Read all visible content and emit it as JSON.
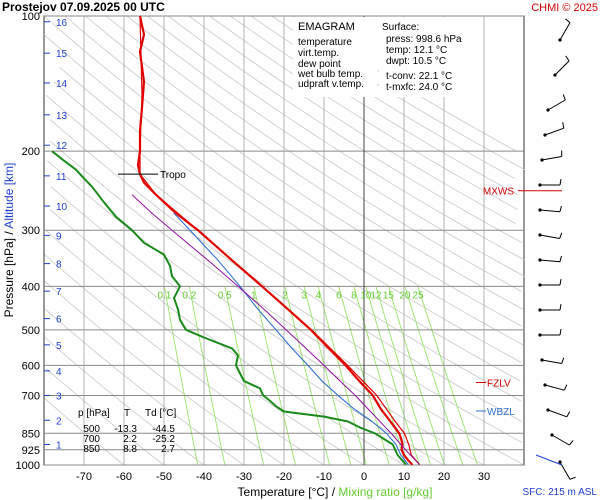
{
  "header": {
    "title": "Prostejov   07.09.2025 00 UTC",
    "copyright": "CHMI © 2025"
  },
  "legend": {
    "heading": "EMAGRAM",
    "items": [
      {
        "label": "temperature",
        "color": "#e00000"
      },
      {
        "label": "virt.temp.",
        "color": "#e00000"
      },
      {
        "label": "dew point",
        "color": "#1a8a1a"
      },
      {
        "label": "wet bulb temp.",
        "color": "#3070d0"
      },
      {
        "label": "udpraft v.temp.",
        "color": "#9010a0"
      }
    ]
  },
  "surface_box": {
    "heading": "Surface:",
    "lines": [
      {
        "text": "press: 998.6 hPa",
        "color": "#000000"
      },
      {
        "text": "temp: 12.1 °C",
        "color": "#e00000"
      },
      {
        "text": "dwpt: 10.5 °C",
        "color": "#1a8a1a"
      },
      {
        "text": "t-conv: 22.1 °C",
        "color": "#000000"
      },
      {
        "text": "t-mxfc: 24.0 °C",
        "color": "#000000"
      }
    ]
  },
  "table": {
    "headers": [
      "p [hPa]",
      "T",
      "Td [°C]"
    ],
    "rows": [
      [
        "500",
        "-13.3",
        "-44.5"
      ],
      [
        "700",
        "2.2",
        "-25.2"
      ],
      [
        "850",
        "8.8",
        "2.7"
      ]
    ]
  },
  "labels": {
    "tropo": "Tropo",
    "mxws": "MXWS",
    "fzlv": "FZLV",
    "wbzl": "WBZL",
    "sfc": "SFC: 215 m ASL"
  },
  "chart_data": {
    "type": "line",
    "title": "Prostejov   07.09.2025 00 UTC",
    "xlabel": "Temperature [°C]",
    "xlabel2": "Mixing ratio [g/kg]",
    "ylabel": "Pressure [hPa]",
    "ylabel2": "Altitude [km]",
    "xlim": [
      -80,
      40
    ],
    "ylim": [
      1000,
      100
    ],
    "y_scale": "log",
    "x_ticks": [
      -70,
      -60,
      -50,
      -40,
      -30,
      -20,
      -10,
      0,
      10,
      20,
      30
    ],
    "p_ticks": [
      100,
      200,
      300,
      400,
      500,
      600,
      700,
      850,
      925,
      1000
    ],
    "altitude_ticks": [
      {
        "km": 1,
        "p": 900
      },
      {
        "km": 2,
        "p": 795
      },
      {
        "km": 3,
        "p": 700
      },
      {
        "km": 4,
        "p": 617
      },
      {
        "km": 5,
        "p": 540
      },
      {
        "km": 6,
        "p": 472
      },
      {
        "km": 7,
        "p": 410
      },
      {
        "km": 8,
        "p": 356
      },
      {
        "km": 9,
        "p": 308
      },
      {
        "km": 10,
        "p": 265
      },
      {
        "km": 11,
        "p": 227
      },
      {
        "km": 12,
        "p": 194
      },
      {
        "km": 13,
        "p": 166
      },
      {
        "km": 14,
        "p": 141
      },
      {
        "km": 15,
        "p": 121
      },
      {
        "km": 16,
        "p": 103
      }
    ],
    "mixing_ratio_labels": [
      "0.1",
      "0.2",
      "0.5",
      "1",
      "2",
      "3",
      "4",
      "6",
      "8",
      "10",
      "12",
      "15",
      "20",
      "25"
    ],
    "mixing_ratio_values": [
      0.1,
      0.2,
      0.5,
      1,
      2,
      3,
      4,
      6,
      8,
      10,
      12,
      15,
      20,
      25
    ],
    "mixing_ratio_label_p": 400,
    "series": [
      {
        "name": "temperature",
        "color": "#e00000",
        "points": [
          [
            998.6,
            12.1
          ],
          [
            975,
            11
          ],
          [
            950,
            10
          ],
          [
            925,
            9.4
          ],
          [
            900,
            9.6
          ],
          [
            875,
            9.3
          ],
          [
            850,
            8.8
          ],
          [
            820,
            7.5
          ],
          [
            800,
            6.6
          ],
          [
            750,
            4.2
          ],
          [
            700,
            2.2
          ],
          [
            650,
            -1.2
          ],
          [
            600,
            -4.6
          ],
          [
            550,
            -8.8
          ],
          [
            500,
            -13.3
          ],
          [
            450,
            -19
          ],
          [
            400,
            -25.5
          ],
          [
            350,
            -33
          ],
          [
            300,
            -41.5
          ],
          [
            275,
            -47
          ],
          [
            250,
            -52
          ],
          [
            235,
            -55
          ],
          [
            225,
            -56
          ],
          [
            215,
            -56.5
          ],
          [
            200,
            -56
          ],
          [
            180,
            -56
          ],
          [
            160,
            -55.5
          ],
          [
            140,
            -55
          ],
          [
            120,
            -56
          ],
          [
            110,
            -55
          ],
          [
            100,
            -56
          ]
        ]
      },
      {
        "name": "virt.temp.",
        "color": "#e00000",
        "points": [
          [
            998.6,
            13.9
          ],
          [
            950,
            11.8
          ],
          [
            900,
            11.2
          ],
          [
            850,
            10.1
          ],
          [
            800,
            7.8
          ],
          [
            700,
            3.2
          ],
          [
            600,
            -4.1
          ],
          [
            500,
            -13.1
          ],
          [
            400,
            -25.4
          ],
          [
            300,
            -41.5
          ],
          [
            250,
            -52
          ],
          [
            225,
            -56
          ],
          [
            200,
            -56
          ],
          [
            150,
            -55.5
          ],
          [
            100,
            -56
          ]
        ]
      },
      {
        "name": "dew point",
        "color": "#1a8a1a",
        "points": [
          [
            998.6,
            10.5
          ],
          [
            975,
            9.5
          ],
          [
            950,
            8.4
          ],
          [
            925,
            7.8
          ],
          [
            900,
            7.2
          ],
          [
            875,
            5
          ],
          [
            850,
            2.7
          ],
          [
            825,
            -1
          ],
          [
            800,
            -4
          ],
          [
            780,
            -10
          ],
          [
            760,
            -20
          ],
          [
            740,
            -22
          ],
          [
            720,
            -23.5
          ],
          [
            700,
            -25.2
          ],
          [
            675,
            -26
          ],
          [
            650,
            -30
          ],
          [
            625,
            -31
          ],
          [
            600,
            -32
          ],
          [
            570,
            -31.5
          ],
          [
            550,
            -33
          ],
          [
            520,
            -40
          ],
          [
            500,
            -44.5
          ],
          [
            475,
            -46
          ],
          [
            450,
            -46.5
          ],
          [
            425,
            -47.5
          ],
          [
            400,
            -46
          ],
          [
            380,
            -48
          ],
          [
            360,
            -48.5
          ],
          [
            340,
            -50
          ],
          [
            320,
            -55
          ],
          [
            300,
            -58
          ],
          [
            280,
            -62
          ],
          [
            260,
            -65
          ],
          [
            240,
            -68
          ],
          [
            230,
            -70
          ],
          [
            220,
            -72
          ],
          [
            210,
            -75
          ],
          [
            200,
            -78
          ]
        ]
      },
      {
        "name": "wet bulb temp.",
        "color": "#3070d0",
        "points": [
          [
            998.6,
            11.1
          ],
          [
            950,
            9.2
          ],
          [
            925,
            8.6
          ],
          [
            900,
            8
          ],
          [
            850,
            5.6
          ],
          [
            800,
            2
          ],
          [
            750,
            -2.5
          ],
          [
            700,
            -6.5
          ],
          [
            650,
            -10.5
          ],
          [
            600,
            -14
          ],
          [
            550,
            -18
          ],
          [
            500,
            -22
          ],
          [
            450,
            -26.5
          ],
          [
            400,
            -31
          ],
          [
            350,
            -36.5
          ],
          [
            300,
            -43.5
          ],
          [
            275,
            -47.5
          ]
        ]
      },
      {
        "name": "udpraft v.temp.",
        "color": "#9010a0",
        "points": [
          [
            998.6,
            13.9
          ],
          [
            950,
            11.6
          ],
          [
            925,
            10.4
          ],
          [
            900,
            9.2
          ],
          [
            850,
            6.8
          ],
          [
            800,
            4
          ],
          [
            750,
            1
          ],
          [
            700,
            -2.2
          ],
          [
            650,
            -6
          ],
          [
            600,
            -10
          ],
          [
            550,
            -14.5
          ],
          [
            500,
            -19.5
          ],
          [
            450,
            -25
          ],
          [
            400,
            -31.5
          ],
          [
            350,
            -39
          ],
          [
            300,
            -48
          ],
          [
            275,
            -53
          ],
          [
            250,
            -58
          ]
        ]
      }
    ],
    "levels": [
      {
        "label": "Tropo",
        "p": 225,
        "t": -57
      },
      {
        "label": "FZLV",
        "p": 655,
        "t": 28
      },
      {
        "label": "WBZL",
        "p": 735,
        "t": 28
      },
      {
        "label": "MXWS",
        "p": 245,
        "t": 42
      }
    ]
  }
}
